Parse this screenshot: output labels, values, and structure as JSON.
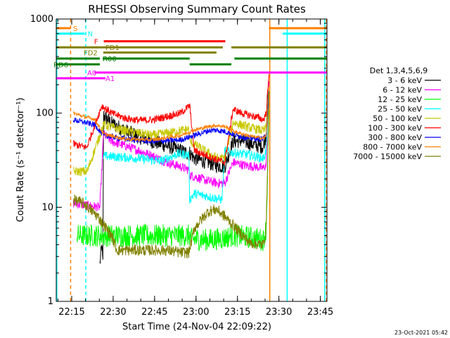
{
  "chart_data": {
    "type": "line",
    "title": "RHESSI Observing Summary Count Rates",
    "xlabel": "Start Time (24-Nov-04 22:09:22)",
    "ylabel": "Count Rate (s⁻¹ detector⁻¹)",
    "y_scale": "log",
    "ylim": [
      1,
      1000
    ],
    "xlim_minutes": [
      0,
      98
    ],
    "x_ticks": [
      {
        "label": "22:15",
        "min": 5.6
      },
      {
        "label": "22:30",
        "min": 20.6
      },
      {
        "label": "22:45",
        "min": 35.6
      },
      {
        "label": "23:00",
        "min": 50.6
      },
      {
        "label": "23:15",
        "min": 65.6
      },
      {
        "label": "23:30",
        "min": 80.6
      },
      {
        "label": "23:45",
        "min": 95.6
      }
    ],
    "y_ticks": [
      "1",
      "10",
      "100",
      "1000"
    ],
    "legend": {
      "title": "Det 1,3,4,5,6,9",
      "placement": "right",
      "entries": [
        {
          "label": "3 - 6 keV",
          "color": "#000000"
        },
        {
          "label": "6 - 12 keV",
          "color": "#ff00ff"
        },
        {
          "label": "12 - 25 keV",
          "color": "#00ff00"
        },
        {
          "label": "25 - 50 keV",
          "color": "#00ffff"
        },
        {
          "label": "50 - 100 keV",
          "color": "#c8c800"
        },
        {
          "label": "100 - 300 keV",
          "color": "#ff0000"
        },
        {
          "label": "300 - 800 keV",
          "color": "#0000ff"
        },
        {
          "label": "800 - 7000 keV",
          "color": "#ff8000"
        },
        {
          "label": "7000 - 15000 keV",
          "color": "#808000"
        }
      ]
    },
    "flag_bars": [
      {
        "label": "S",
        "color": "#ff8000",
        "y": 800,
        "segments": [
          [
            0,
            5.1
          ],
          [
            77,
            98
          ]
        ]
      },
      {
        "label": "N",
        "color": "#00ffff",
        "y": 700,
        "segments": [
          [
            0,
            10.3
          ],
          [
            82,
            98
          ]
        ]
      },
      {
        "label": "F",
        "color": "#ff0000",
        "y": 580,
        "segments": [
          [
            17.2,
            61.2
          ]
        ]
      },
      {
        "label": "FD1",
        "color": "#808000",
        "y": 500,
        "segments": [
          [
            0,
            60.3
          ],
          [
            63.4,
            98
          ]
        ]
      },
      {
        "label": "FD2",
        "color": "#808000",
        "y": 440,
        "segments": [
          [
            17,
            58
          ]
        ]
      },
      {
        "label": "R00",
        "color": "#008000",
        "y": 380,
        "segments": [
          [
            0,
            15.8
          ],
          [
            16.8,
            48.3
          ],
          [
            64.5,
            98
          ]
        ]
      },
      {
        "label": "RD6",
        "color": "#008000",
        "y": 330,
        "segments": [
          [
            0,
            15.8
          ],
          [
            48.3,
            63.4
          ]
        ]
      },
      {
        "label": "A0",
        "color": "#ff00ff",
        "y": 270,
        "segments": [
          [
            13.8,
            98
          ]
        ]
      },
      {
        "label": "A1",
        "color": "#ff00ff",
        "y": 235,
        "segments": [
          [
            0,
            17.8
          ]
        ]
      }
    ],
    "vertical_markers": [
      {
        "min": 0.2,
        "color": "#00ffff",
        "style": "solid"
      },
      {
        "min": 5.2,
        "color": "#ff8000",
        "style": "dashed"
      },
      {
        "min": 10.7,
        "color": "#00ffff",
        "style": "dashed"
      },
      {
        "min": 77.3,
        "color": "#ff8000",
        "style": "solid"
      },
      {
        "min": 83.6,
        "color": "#00ffff",
        "style": "solid"
      },
      {
        "min": 97.2,
        "color": "#00ffff",
        "style": "solid"
      },
      {
        "min": 97.8,
        "color": "#ff8000",
        "style": "dashed"
      }
    ],
    "series": [
      {
        "name": "3 - 6 keV",
        "color": "#000000",
        "noise": 0.08,
        "points": [
          [
            15.8,
            2.5
          ],
          [
            16.5,
            4
          ],
          [
            16.9,
            2.4
          ],
          [
            17.1,
            95
          ],
          [
            20,
            78
          ],
          [
            25,
            65
          ],
          [
            30,
            56
          ],
          [
            35,
            50
          ],
          [
            40,
            45
          ],
          [
            45,
            40
          ],
          [
            48,
            37
          ],
          [
            48.3,
            38
          ],
          [
            50,
            33
          ],
          [
            55,
            30
          ],
          [
            58,
            28
          ],
          [
            61,
            27
          ],
          [
            64,
            50
          ],
          [
            67,
            51
          ],
          [
            70,
            48
          ],
          [
            73,
            45
          ],
          [
            75,
            44
          ],
          [
            76,
            60
          ],
          [
            77,
            220
          ]
        ]
      },
      {
        "name": "6 - 12 keV",
        "color": "#ff00ff",
        "noise": 0.05,
        "points": [
          [
            6.2,
            11
          ],
          [
            15.8,
            10
          ],
          [
            17.1,
            60
          ],
          [
            20,
            50
          ],
          [
            25,
            45
          ],
          [
            30,
            40
          ],
          [
            35,
            35
          ],
          [
            40,
            30
          ],
          [
            45,
            27
          ],
          [
            48,
            25
          ],
          [
            48.3,
            22
          ],
          [
            55,
            19
          ],
          [
            58.5,
            18
          ],
          [
            61,
            18
          ],
          [
            64,
            30
          ],
          [
            68,
            28
          ],
          [
            72,
            27
          ],
          [
            75,
            26
          ],
          [
            76,
            28
          ],
          [
            77,
            240
          ]
        ]
      },
      {
        "name": "12 - 25 keV",
        "color": "#00ff00",
        "noise": 0.12,
        "points": [
          [
            7.5,
            5
          ],
          [
            15.8,
            5
          ],
          [
            17.1,
            5
          ],
          [
            25,
            5
          ],
          [
            35,
            5
          ],
          [
            45,
            5
          ],
          [
            48.3,
            5
          ],
          [
            48.5,
            4.6
          ],
          [
            55,
            4.5
          ],
          [
            61,
            4.7
          ],
          [
            63.5,
            5
          ],
          [
            70,
            4.8
          ],
          [
            75,
            4.5
          ],
          [
            76,
            6
          ],
          [
            77,
            90
          ]
        ]
      },
      {
        "name": "25 - 50 keV",
        "color": "#00ffff",
        "noise": 0.05,
        "points": [
          [
            17.1,
            35
          ],
          [
            30,
            33
          ],
          [
            38,
            31
          ],
          [
            44,
            37
          ],
          [
            48,
            36
          ],
          [
            48.3,
            12
          ],
          [
            50,
            14
          ],
          [
            55,
            13
          ],
          [
            60,
            12
          ],
          [
            61,
            40
          ],
          [
            64,
            38
          ],
          [
            70,
            36
          ],
          [
            75,
            33
          ],
          [
            76,
            40
          ],
          [
            77,
            160
          ]
        ]
      },
      {
        "name": "50 - 100 keV",
        "color": "#c8c800",
        "noise": 0.05,
        "points": [
          [
            6.2,
            24
          ],
          [
            11.2,
            24
          ],
          [
            17.1,
            75
          ],
          [
            25,
            65
          ],
          [
            35,
            58
          ],
          [
            45,
            65
          ],
          [
            48,
            68
          ],
          [
            48.3,
            50
          ],
          [
            52,
            43
          ],
          [
            56,
            36
          ],
          [
            58.5,
            33
          ],
          [
            61,
            33
          ],
          [
            64,
            80
          ],
          [
            70,
            70
          ],
          [
            75,
            65
          ],
          [
            76,
            70
          ],
          [
            77,
            200
          ]
        ]
      },
      {
        "name": "100 - 300 keV",
        "color": "#ff0000",
        "noise": 0.04,
        "points": [
          [
            6.2,
            47
          ],
          [
            11,
            43
          ],
          [
            16.5,
            120
          ],
          [
            20,
            100
          ],
          [
            25,
            88
          ],
          [
            30,
            84
          ],
          [
            35,
            85
          ],
          [
            40,
            92
          ],
          [
            45,
            100
          ],
          [
            48.3,
            120
          ],
          [
            50,
            40
          ],
          [
            55,
            35
          ],
          [
            58,
            32
          ],
          [
            61,
            30
          ],
          [
            64,
            110
          ],
          [
            67,
            100
          ],
          [
            70,
            95
          ],
          [
            73,
            90
          ],
          [
            75,
            85
          ],
          [
            76,
            100
          ],
          [
            77,
            250
          ]
        ]
      },
      {
        "name": "300 - 800 keV",
        "color": "#0000ff",
        "noise": 0.03,
        "points": [
          [
            6.2,
            85
          ],
          [
            10,
            80
          ],
          [
            14,
            75
          ],
          [
            17.1,
            58
          ],
          [
            25,
            53
          ],
          [
            35,
            50
          ],
          [
            45,
            52
          ],
          [
            50,
            58
          ],
          [
            55,
            65
          ],
          [
            58,
            66
          ],
          [
            61,
            64
          ],
          [
            65,
            58
          ],
          [
            70,
            54
          ],
          [
            75,
            53
          ],
          [
            76,
            60
          ],
          [
            77,
            160
          ]
        ]
      },
      {
        "name": "800 - 7000 keV",
        "color": "#ff8000",
        "noise": 0.02,
        "points": [
          [
            6.2,
            100
          ],
          [
            10,
            92
          ],
          [
            14,
            86
          ],
          [
            17.1,
            60
          ],
          [
            25,
            53
          ],
          [
            35,
            52
          ],
          [
            45,
            58
          ],
          [
            50,
            66
          ],
          [
            55,
            72
          ],
          [
            58,
            74
          ],
          [
            61,
            72
          ],
          [
            65,
            63
          ],
          [
            70,
            57
          ],
          [
            75,
            54
          ],
          [
            76,
            57
          ],
          [
            77,
            130
          ]
        ]
      },
      {
        "name": "7000 - 15000 keV",
        "color": "#808000",
        "noise": 0.06,
        "points": [
          [
            6.2,
            12
          ],
          [
            10,
            11
          ],
          [
            15,
            8
          ],
          [
            20,
            5
          ],
          [
            22,
            3.5
          ],
          [
            30,
            3.5
          ],
          [
            40,
            3.5
          ],
          [
            45,
            3.3
          ],
          [
            48,
            3.3
          ],
          [
            50,
            6
          ],
          [
            55,
            9
          ],
          [
            58,
            9.5
          ],
          [
            61,
            8
          ],
          [
            65,
            6
          ],
          [
            70,
            4.2
          ],
          [
            75,
            4
          ],
          [
            76,
            6
          ],
          [
            77,
            150
          ]
        ]
      }
    ],
    "footer_date": "23-Oct-2021 05:42"
  }
}
